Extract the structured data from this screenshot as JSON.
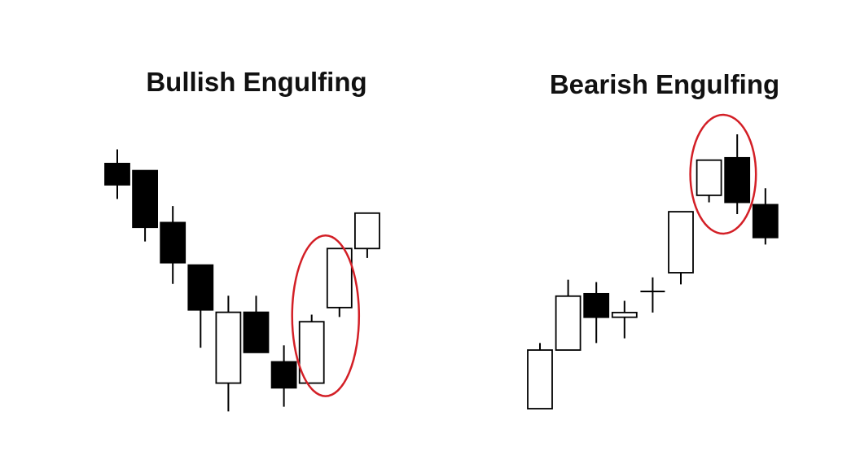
{
  "chart_data": [
    {
      "type": "candlestick",
      "title": "Bullish Engulfing",
      "pattern_highlight": {
        "candles": [
          7,
          8
        ],
        "color": "#d31f26"
      },
      "candles": [
        {
          "open": 0.7,
          "close": 0.79,
          "high": 0.85,
          "low": 0.64,
          "color": "black"
        },
        {
          "open": 0.76,
          "close": 0.52,
          "high": 0.76,
          "low": 0.46,
          "color": "black"
        },
        {
          "open": 0.54,
          "close": 0.37,
          "high": 0.61,
          "low": 0.28,
          "color": "black"
        },
        {
          "open": 0.36,
          "close": 0.17,
          "high": 0.36,
          "low": 0.01,
          "color": "black"
        },
        {
          "open": -0.14,
          "close": 0.16,
          "high": 0.23,
          "low": -0.26,
          "color": "white"
        },
        {
          "open": 0.16,
          "close": -0.01,
          "high": 0.23,
          "low": -0.01,
          "color": "black"
        },
        {
          "open": -0.05,
          "close": -0.16,
          "high": 0.02,
          "low": -0.24,
          "color": "black"
        },
        {
          "open": -0.14,
          "close": 0.12,
          "high": 0.15,
          "low": -0.14,
          "color": "white"
        },
        {
          "open": 0.18,
          "close": 0.43,
          "high": 0.43,
          "low": 0.14,
          "color": "white"
        },
        {
          "open": 0.43,
          "close": 0.58,
          "high": 0.58,
          "low": 0.39,
          "color": "white"
        }
      ]
    },
    {
      "type": "candlestick",
      "title": "Bearish Engulfing",
      "pattern_highlight": {
        "candles": [
          6,
          7
        ],
        "color": "#d31f26"
      },
      "candles": [
        {
          "open": -0.25,
          "close": 0.0,
          "high": 0.03,
          "low": -0.25,
          "color": "white"
        },
        {
          "open": 0.0,
          "close": 0.23,
          "high": 0.3,
          "low": 0.0,
          "color": "white"
        },
        {
          "open": 0.24,
          "close": 0.14,
          "high": 0.29,
          "low": 0.03,
          "color": "black"
        },
        {
          "open": 0.14,
          "close": 0.16,
          "high": 0.21,
          "low": 0.05,
          "color": "white"
        },
        {
          "open": 0.25,
          "close": 0.25,
          "high": 0.31,
          "low": 0.16,
          "color": "doji"
        },
        {
          "open": 0.33,
          "close": 0.59,
          "high": 0.59,
          "low": 0.28,
          "color": "white"
        },
        {
          "open": 0.66,
          "close": 0.81,
          "high": 0.81,
          "low": 0.63,
          "color": "white"
        },
        {
          "open": 0.82,
          "close": 0.63,
          "high": 0.92,
          "low": 0.58,
          "color": "black"
        },
        {
          "open": 0.62,
          "close": 0.48,
          "high": 0.69,
          "low": 0.45,
          "color": "black"
        }
      ]
    }
  ]
}
